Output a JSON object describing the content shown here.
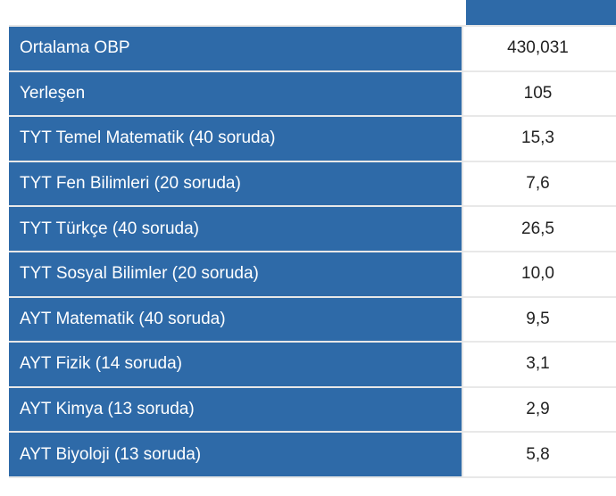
{
  "rows": [
    {
      "label": "Ortalama OBP",
      "value": "430,031"
    },
    {
      "label": "Yerleşen",
      "value": "105"
    },
    {
      "label": "TYT Temel Matematik (40 soruda)",
      "value": "15,3"
    },
    {
      "label": "TYT Fen Bilimleri (20 soruda)",
      "value": "7,6"
    },
    {
      "label": "TYT Türkçe (40 soruda)",
      "value": "26,5"
    },
    {
      "label": "TYT Sosyal Bilimler (20 soruda)",
      "value": "10,0"
    },
    {
      "label": "AYT Matematik (40 soruda)",
      "value": "9,5"
    },
    {
      "label": "AYT Fizik (14 soruda)",
      "value": "3,1"
    },
    {
      "label": "AYT Kimya (13 soruda)",
      "value": "2,9"
    },
    {
      "label": "AYT Biyoloji (13 soruda)",
      "value": "5,8"
    }
  ],
  "colors": {
    "label_background": "#2e6aa8",
    "label_text": "#ffffff",
    "value_text": "#222222"
  }
}
